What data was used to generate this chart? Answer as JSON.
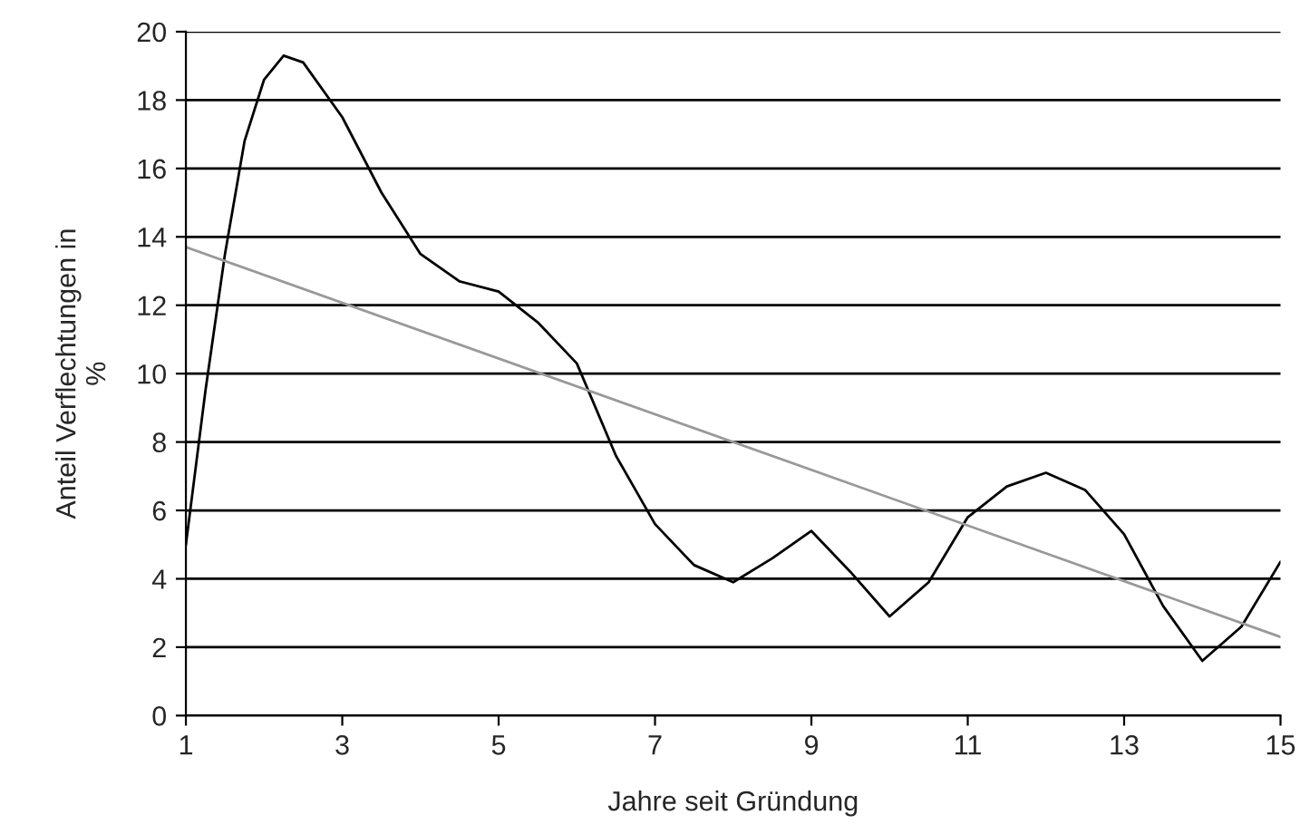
{
  "chart_data": {
    "type": "line",
    "xlabel": "Jahre seit Gründung",
    "ylabel": "Anteil Verflechtungen in\n%",
    "series": [
      {
        "color": "#000000",
        "x": [
          1,
          1.25,
          1.5,
          1.75,
          2,
          2.25,
          2.5,
          3,
          3.5,
          4,
          4.5,
          5,
          5.5,
          6,
          6.5,
          7,
          7.5,
          8,
          8.5,
          9,
          9.5,
          10,
          10.5,
          11,
          11.5,
          12,
          12.5,
          13,
          13.5,
          14,
          14.5,
          15
        ],
        "values": [
          5,
          9.5,
          13.5,
          16.8,
          18.6,
          19.3,
          19.1,
          17.5,
          15.3,
          13.5,
          12.7,
          12.4,
          11.5,
          10.3,
          7.6,
          5.6,
          4.4,
          3.9,
          4.6,
          5.4,
          4.2,
          2.9,
          3.9,
          5.8,
          6.7,
          7.1,
          6.6,
          5.3,
          3.2,
          1.6,
          2.6,
          4.5
        ]
      },
      {
        "type": "line",
        "color": "#999999",
        "x": [
          1,
          15
        ],
        "values": [
          13.7,
          2.3
        ]
      }
    ],
    "xlim": [
      1,
      15
    ],
    "xticks": [
      1,
      3,
      5,
      7,
      9,
      11,
      13,
      15
    ],
    "ylim": [
      0,
      20
    ],
    "yticks": [
      0,
      2,
      4,
      6,
      8,
      10,
      12,
      14,
      16,
      18,
      20
    ],
    "grid": "y",
    "legend": false,
    "marker": "none",
    "line_style": "solid"
  }
}
